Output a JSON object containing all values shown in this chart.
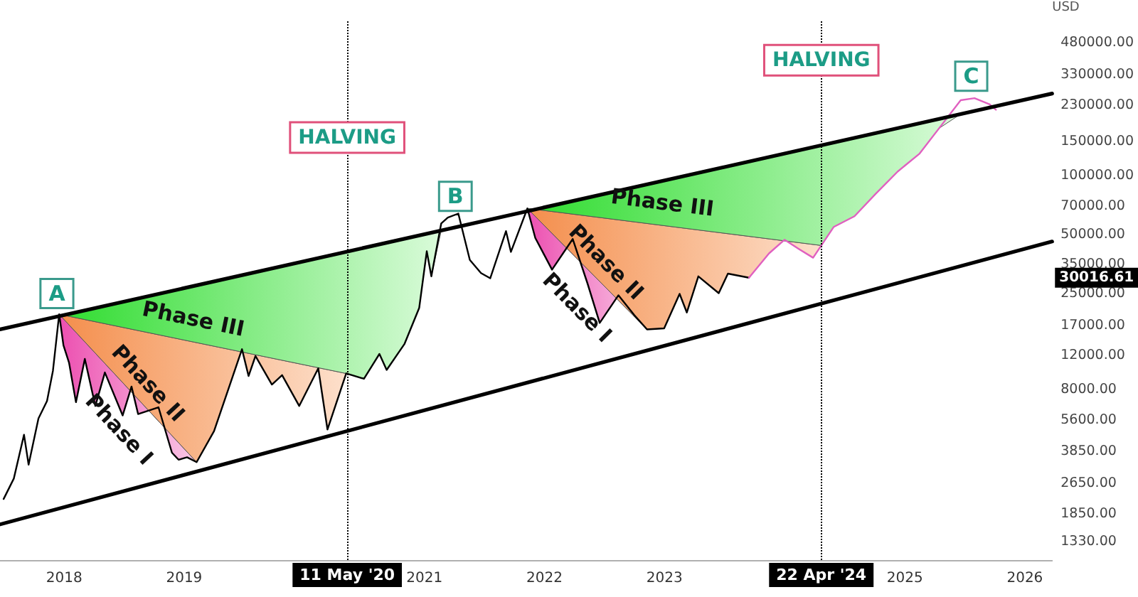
{
  "chart_data": {
    "type": "line",
    "ylabel": "USD",
    "log": true,
    "grid": false,
    "marker": "none",
    "xlim": [
      "2017-06-20",
      "2026-03-25"
    ],
    "xticks": [
      "2018",
      "2019",
      "2021",
      "2022",
      "2023",
      "2025",
      "2026"
    ],
    "ylim": [
      1070,
      630000
    ],
    "yticks": [
      {
        "value": 480000,
        "label": "480000.00"
      },
      {
        "value": 330000,
        "label": "330000.00"
      },
      {
        "value": 230000,
        "label": "230000.00"
      },
      {
        "value": 150000,
        "label": "150000.00"
      },
      {
        "value": 100000,
        "label": "100000.00"
      },
      {
        "value": 70000,
        "label": "70000.00"
      },
      {
        "value": 50000,
        "label": "50000.00"
      },
      {
        "value": 35000,
        "label": "35000.00"
      },
      {
        "value": 25000,
        "label": "25000.00"
      },
      {
        "value": 17000,
        "label": "17000.00"
      },
      {
        "value": 12000,
        "label": "12000.00"
      },
      {
        "value": 8000,
        "label": "8000.00"
      },
      {
        "value": 5600,
        "label": "5600.00"
      },
      {
        "value": 3850,
        "label": "3850.00"
      },
      {
        "value": 2650,
        "label": "2650.00"
      },
      {
        "value": 1850,
        "label": "1850.00"
      },
      {
        "value": 1330,
        "label": "1330.00"
      }
    ],
    "series": [
      {
        "color": "#000000",
        "x": [
          "2017-07-01",
          "2017-08-01",
          "2017-09-01",
          "2017-09-15",
          "2017-10-15",
          "2017-11-10",
          "2017-11-28",
          "2017-12-17",
          "2017-12-30",
          "2018-01-16",
          "2018-02-06",
          "2018-03-05",
          "2018-04-06",
          "2018-05-05",
          "2018-06-28",
          "2018-07-25",
          "2018-08-14",
          "2018-10-15",
          "2018-11-25",
          "2018-12-15",
          "2019-01-10",
          "2019-02-08",
          "2019-04-02",
          "2019-05-15",
          "2019-06-26",
          "2019-07-16",
          "2019-08-06",
          "2019-09-25",
          "2019-10-26",
          "2019-12-17",
          "2020-02-13",
          "2020-03-12",
          "2020-05-08",
          "2020-07-01",
          "2020-08-17",
          "2020-09-08",
          "2020-11-01",
          "2020-12-16",
          "2021-01-08",
          "2021-01-22",
          "2021-02-21",
          "2021-03-13",
          "2021-04-14",
          "2021-05-19",
          "2021-06-22",
          "2021-07-20",
          "2021-09-06",
          "2021-09-21",
          "2021-11-10",
          "2021-12-04",
          "2022-01-24",
          "2022-03-28",
          "2022-05-12",
          "2022-06-18",
          "2022-08-14",
          "2022-10-01",
          "2022-11-09",
          "2022-12-31",
          "2023-02-16",
          "2023-03-10",
          "2023-04-14",
          "2023-06-15",
          "2023-07-13",
          "2023-09-15"
        ],
        "values": [
          2200,
          2800,
          4700,
          3300,
          5700,
          7000,
          10000,
          19500,
          13500,
          11000,
          6900,
          11500,
          6600,
          9800,
          5900,
          8300,
          6000,
          6500,
          3800,
          3500,
          3600,
          3400,
          4900,
          8000,
          12900,
          9400,
          11900,
          8500,
          9500,
          6600,
          10300,
          5000,
          9700,
          9100,
          12200,
          10100,
          13700,
          21000,
          41000,
          30500,
          57000,
          61000,
          64000,
          37000,
          31700,
          29800,
          52000,
          40700,
          68000,
          48000,
          33000,
          47400,
          28000,
          17600,
          24400,
          19300,
          16300,
          16500,
          24800,
          19900,
          30500,
          25000,
          31500,
          30016.61
        ]
      },
      {
        "color": "#e060c0",
        "x": [
          "2023-09-15",
          "2023-11-15",
          "2024-01-01",
          "2024-02-15",
          "2024-03-28",
          "2024-05-30",
          "2024-08-01",
          "2024-10-05",
          "2024-12-10",
          "2025-02-15",
          "2025-04-15",
          "2025-06-20",
          "2025-08-01",
          "2025-09-15",
          "2025-10-05"
        ],
        "values": [
          30016.61,
          40000,
          47000,
          42000,
          38000,
          54700,
          62000,
          81000,
          105000,
          130000,
          175000,
          244000,
          250000,
          233000,
          218000
        ]
      },
      {
        "color": "#000000",
        "x": [
          "2017-06-20",
          "2026-03-25"
        ],
        "values": [
          16300,
          264000
        ]
      },
      {
        "color": "#000000",
        "x": [
          "2017-06-20",
          "2026-03-25"
        ],
        "values": [
          1630,
          46000
        ]
      }
    ],
    "ref_lines": [
      {
        "axis": "x",
        "value": "2020-05-11",
        "label": "11 May '20",
        "color": "#000000",
        "line_style": "dotted"
      },
      {
        "axis": "x",
        "value": "2024-04-22",
        "label": "22 Apr '24",
        "color": "#000000",
        "line_style": "dotted"
      }
    ],
    "annotations": [
      {
        "text": "A",
        "x": "2017-12-10",
        "y": 24900
      },
      {
        "text": "B",
        "x": "2021-04-05",
        "y": 78500
      },
      {
        "text": "C",
        "x": "2025-07-22",
        "y": 324000
      },
      {
        "text": "HALVING",
        "x": "2020-05-11",
        "y": 157000
      },
      {
        "text": "HALVING",
        "x": "2024-04-22",
        "y": 391000
      },
      "Phase III",
      "Phase II",
      "Phase I",
      "Phase III",
      "Phase II",
      "Phase I",
      "30016.61"
    ]
  }
}
